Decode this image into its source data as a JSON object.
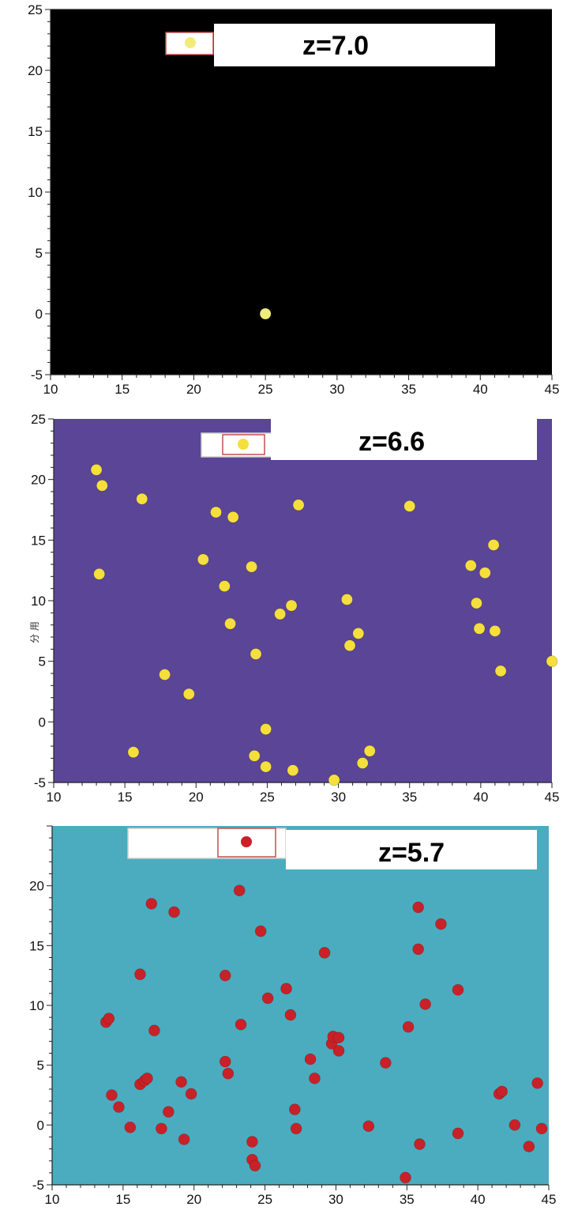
{
  "chart_data": [
    {
      "type": "scatter",
      "title": "z=7.0",
      "xlabel": "",
      "ylabel": "",
      "xlim": [
        10,
        45
      ],
      "ylim": [
        -5,
        25
      ],
      "x_ticks": [
        10,
        15,
        20,
        25,
        30,
        35,
        40,
        45
      ],
      "y_ticks": [
        -5,
        0,
        5,
        10,
        15,
        20,
        25
      ],
      "grid": false,
      "legend": "top-left",
      "colors": {
        "background": "#000000",
        "marker": "#f0ec7a",
        "legend_border": "#c0504d"
      },
      "points": [
        [
          25.0,
          0.0
        ]
      ]
    },
    {
      "type": "scatter",
      "title": "z=6.6",
      "xlabel": "",
      "ylabel": "",
      "xlim": [
        10,
        45
      ],
      "ylim": [
        -5,
        25
      ],
      "x_ticks": [
        10,
        15,
        20,
        25,
        30,
        35,
        40,
        45
      ],
      "y_ticks": [
        -5,
        0,
        5,
        10,
        15,
        20,
        25
      ],
      "grid": false,
      "legend": "top-left",
      "colors": {
        "background": "#5b4597",
        "marker": "#f5df3c",
        "legend_border": "#c0504d"
      },
      "points": [
        [
          13.0,
          20.8
        ],
        [
          13.4,
          19.5
        ],
        [
          16.2,
          18.4
        ],
        [
          13.2,
          12.2
        ],
        [
          21.4,
          17.3
        ],
        [
          22.6,
          16.9
        ],
        [
          27.2,
          17.9
        ],
        [
          35.0,
          17.8
        ],
        [
          20.5,
          13.4
        ],
        [
          22.0,
          11.2
        ],
        [
          23.9,
          12.8
        ],
        [
          22.4,
          8.1
        ],
        [
          25.9,
          8.9
        ],
        [
          26.7,
          9.6
        ],
        [
          24.2,
          5.6
        ],
        [
          30.6,
          10.1
        ],
        [
          30.8,
          6.3
        ],
        [
          31.4,
          7.3
        ],
        [
          17.8,
          3.9
        ],
        [
          19.5,
          2.3
        ],
        [
          15.6,
          -2.5
        ],
        [
          24.9,
          -0.6
        ],
        [
          24.1,
          -2.8
        ],
        [
          24.9,
          -3.7
        ],
        [
          26.8,
          -4.0
        ],
        [
          29.7,
          -4.8
        ],
        [
          31.7,
          -3.4
        ],
        [
          32.2,
          -2.4
        ],
        [
          39.3,
          12.9
        ],
        [
          40.3,
          12.3
        ],
        [
          40.9,
          14.6
        ],
        [
          39.7,
          9.8
        ],
        [
          39.9,
          7.7
        ],
        [
          41.0,
          7.5
        ],
        [
          41.4,
          4.2
        ],
        [
          45.0,
          5.0
        ]
      ]
    },
    {
      "type": "scatter",
      "title": "z=5.7",
      "xlabel": "",
      "ylabel": "分 用",
      "xlim": [
        10,
        45
      ],
      "ylim": [
        -5,
        25
      ],
      "x_ticks": [
        10,
        15,
        20,
        25,
        30,
        35,
        40,
        45
      ],
      "y_ticks": [
        -5,
        0,
        5,
        10,
        15,
        20
      ],
      "grid": false,
      "legend": "top-left",
      "colors": {
        "background": "#4bacc0",
        "marker": "#c82127",
        "legend_border": "#c0504d"
      },
      "points": [
        [
          13.8,
          8.6
        ],
        [
          14.0,
          8.9
        ],
        [
          14.2,
          2.5
        ],
        [
          14.7,
          1.5
        ],
        [
          15.5,
          -0.2
        ],
        [
          16.2,
          12.6
        ],
        [
          16.2,
          3.4
        ],
        [
          16.5,
          3.7
        ],
        [
          16.7,
          3.9
        ],
        [
          17.0,
          18.5
        ],
        [
          17.2,
          7.9
        ],
        [
          17.7,
          -0.3
        ],
        [
          18.2,
          1.1
        ],
        [
          18.6,
          17.8
        ],
        [
          19.1,
          3.6
        ],
        [
          19.3,
          -1.2
        ],
        [
          19.8,
          2.6
        ],
        [
          22.2,
          12.5
        ],
        [
          22.2,
          5.3
        ],
        [
          22.4,
          4.3
        ],
        [
          23.2,
          19.6
        ],
        [
          23.3,
          8.4
        ],
        [
          24.1,
          -1.4
        ],
        [
          24.1,
          -2.9
        ],
        [
          24.3,
          -3.4
        ],
        [
          24.7,
          16.2
        ],
        [
          25.2,
          10.6
        ],
        [
          26.5,
          11.4
        ],
        [
          26.8,
          9.2
        ],
        [
          27.1,
          1.3
        ],
        [
          27.2,
          -0.3
        ],
        [
          28.2,
          5.5
        ],
        [
          28.5,
          3.9
        ],
        [
          29.2,
          14.4
        ],
        [
          29.7,
          6.8
        ],
        [
          29.8,
          7.4
        ],
        [
          30.2,
          7.3
        ],
        [
          30.2,
          6.2
        ],
        [
          32.3,
          -0.1
        ],
        [
          33.5,
          5.2
        ],
        [
          34.9,
          -4.4
        ],
        [
          35.1,
          8.2
        ],
        [
          35.8,
          14.7
        ],
        [
          35.8,
          18.2
        ],
        [
          35.9,
          -1.6
        ],
        [
          36.3,
          10.1
        ],
        [
          37.4,
          16.8
        ],
        [
          38.6,
          11.3
        ],
        [
          38.6,
          -0.7
        ],
        [
          41.5,
          2.6
        ],
        [
          41.7,
          2.8
        ],
        [
          42.6,
          0.0
        ],
        [
          43.6,
          -1.8
        ],
        [
          44.2,
          3.5
        ],
        [
          44.5,
          -0.3
        ]
      ]
    }
  ]
}
